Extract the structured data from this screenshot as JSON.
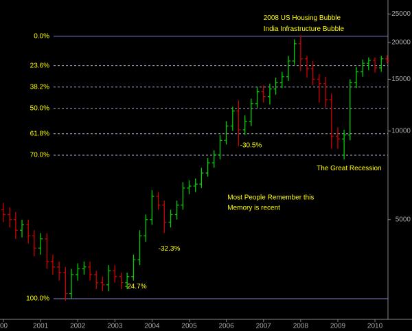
{
  "chart_data": {
    "type": "ohlc",
    "log_scale": true,
    "up_color": "#00d000",
    "down_color": "#d00000",
    "xlim": [
      1999.908,
      2010.35
    ],
    "xticks": [
      {
        "value": 2000,
        "label": "00"
      },
      2001,
      2002,
      2003,
      2004,
      2005,
      2006,
      2007,
      2008,
      2009,
      2010
    ],
    "ylim": [
      2290,
      27900
    ],
    "yticks": [
      5000,
      10000,
      15000,
      20000,
      25000
    ],
    "x": [
      2000.0,
      2000.17,
      2000.33,
      2000.5,
      2000.67,
      2000.83,
      2001.0,
      2001.17,
      2001.33,
      2001.5,
      2001.67,
      2001.83,
      2002.0,
      2002.17,
      2002.33,
      2002.5,
      2002.67,
      2002.83,
      2003.0,
      2003.17,
      2003.33,
      2003.5,
      2003.67,
      2003.83,
      2004.0,
      2004.17,
      2004.33,
      2004.5,
      2004.67,
      2004.83,
      2005.0,
      2005.17,
      2005.33,
      2005.5,
      2005.67,
      2005.83,
      2006.0,
      2006.17,
      2006.33,
      2006.5,
      2006.67,
      2006.83,
      2007.0,
      2007.17,
      2007.33,
      2007.5,
      2007.67,
      2007.83,
      2008.0,
      2008.17,
      2008.33,
      2008.5,
      2008.67,
      2008.83,
      2009.0,
      2009.17,
      2009.33,
      2009.5,
      2009.67,
      2009.83,
      2010.0,
      2010.17,
      2010.33
    ],
    "open": [
      5400,
      5200,
      5000,
      4600,
      4800,
      4400,
      4000,
      4300,
      3600,
      3450,
      3300,
      2800,
      3250,
      3400,
      3450,
      3250,
      3050,
      3000,
      3350,
      3200,
      3050,
      3200,
      3650,
      4400,
      5000,
      6000,
      5600,
      4900,
      5200,
      5600,
      6400,
      6500,
      6600,
      7200,
      7800,
      8300,
      9300,
      10400,
      11700,
      10100,
      10800,
      12400,
      13600,
      13100,
      13900,
      14600,
      15300,
      17300,
      19800,
      17600,
      16300,
      15000,
      14500,
      12800,
      9600,
      9400,
      9700,
      14600,
      15900,
      17000,
      17400,
      16400,
      17600
    ],
    "high": [
      5700,
      5500,
      5300,
      5000,
      5000,
      4600,
      4500,
      4500,
      3800,
      3600,
      3450,
      3400,
      3550,
      3600,
      3600,
      3350,
      3200,
      3500,
      3500,
      3300,
      3300,
      3800,
      4600,
      5200,
      6300,
      6200,
      5800,
      5400,
      5800,
      6700,
      6800,
      6900,
      7500,
      8100,
      8600,
      9700,
      10800,
      12100,
      12700,
      11300,
      12900,
      14100,
      14300,
      14500,
      15200,
      15900,
      18000,
      20500,
      21200,
      18000,
      17300,
      15600,
      15300,
      13400,
      10300,
      10100,
      15000,
      16500,
      17500,
      17800,
      17800,
      18000,
      18100
    ],
    "low": [
      4900,
      4700,
      4300,
      4350,
      4150,
      3750,
      3800,
      3400,
      3250,
      3100,
      2650,
      2700,
      3100,
      3250,
      3100,
      2900,
      2850,
      2850,
      3050,
      2900,
      2900,
      3100,
      3500,
      4200,
      4800,
      5400,
      4500,
      4700,
      5000,
      5400,
      6100,
      6200,
      6400,
      7000,
      7500,
      8000,
      9000,
      10000,
      8900,
      9700,
      10400,
      12000,
      12500,
      12300,
      13300,
      14000,
      14800,
      16800,
      16000,
      15200,
      14300,
      12500,
      12000,
      8700,
      8700,
      8000,
      9300,
      14000,
      15300,
      16100,
      15800,
      15900,
      17000
    ],
    "close": [
      5200,
      5000,
      4600,
      4800,
      4400,
      4000,
      4300,
      3600,
      3450,
      3300,
      2800,
      3250,
      3400,
      3450,
      3250,
      3050,
      3000,
      3350,
      3200,
      3050,
      3200,
      3650,
      4400,
      5000,
      6000,
      5600,
      4900,
      5200,
      5600,
      6400,
      6500,
      6600,
      7200,
      7800,
      8300,
      9300,
      10400,
      11700,
      10100,
      10800,
      12400,
      13600,
      13100,
      13900,
      14600,
      15300,
      17300,
      19800,
      17600,
      16300,
      15000,
      14500,
      12800,
      9600,
      9400,
      9700,
      14600,
      15900,
      17000,
      17400,
      16400,
      17600,
      17300
    ],
    "levels": [
      {
        "label": "0.0%",
        "value": 21010,
        "dashed": false
      },
      {
        "label": "23.6%",
        "value": 16680,
        "dashed": true
      },
      {
        "label": "38.2%",
        "value": 14110,
        "dashed": true
      },
      {
        "label": "50.0%",
        "value": 11940,
        "dashed": true
      },
      {
        "label": "61.8%",
        "value": 9790,
        "dashed": true
      },
      {
        "label": "70.0%",
        "value": 8280,
        "dashed": true
      },
      {
        "label": "100.0%",
        "value": 2690,
        "dashed": false
      }
    ],
    "annotations": [
      {
        "text": "2008 US Housing Bubble",
        "x": 2007.0,
        "y": 24200,
        "color": "#ffff00"
      },
      {
        "text": "India Infrastructure Bubble",
        "x": 2007.0,
        "y": 22200,
        "color": "#ffff00"
      },
      {
        "text": "The Great Recession",
        "x": 2008.43,
        "y": 7450,
        "color": "#ffff00"
      },
      {
        "text": "Most People Remember this",
        "x": 2006.03,
        "y": 5930,
        "color": "#ffff00"
      },
      {
        "text": "Memory is recent",
        "x": 2006.03,
        "y": 5470,
        "color": "#ffff00"
      },
      {
        "text": "-24.7%",
        "x": 2003.27,
        "y": 2960,
        "color": "#ffff00"
      },
      {
        "text": "-32.3%",
        "x": 2004.17,
        "y": 3980,
        "color": "#ffff00"
      },
      {
        "text": "-30.5%",
        "x": 2006.37,
        "y": 8940,
        "color": "#ffff00"
      }
    ]
  }
}
